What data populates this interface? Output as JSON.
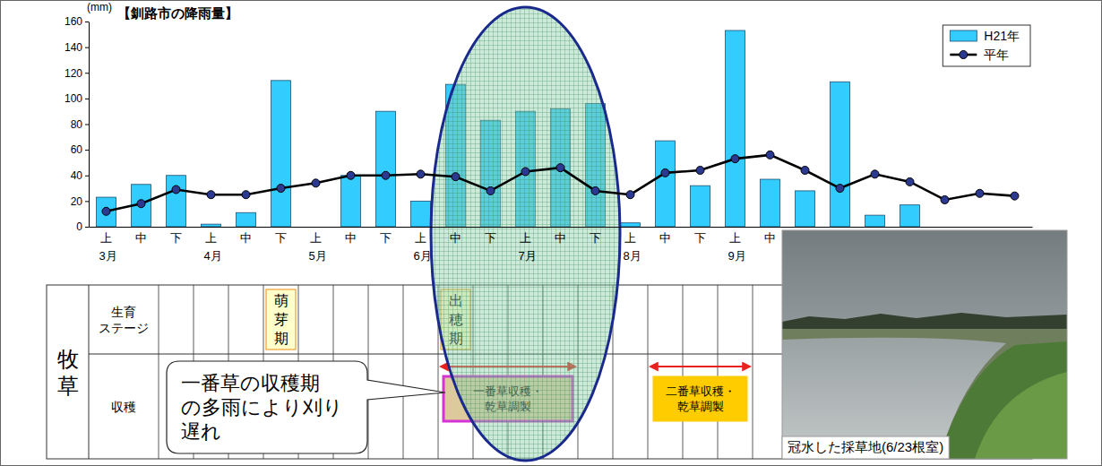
{
  "chart_data": {
    "type": "bar",
    "title": "【釧路市の降雨量】",
    "y_label": "(mm)",
    "categories": [
      "上",
      "中",
      "下",
      "上",
      "中",
      "下",
      "上",
      "中",
      "下",
      "上",
      "中",
      "下",
      "上",
      "中",
      "下",
      "上",
      "中",
      "下",
      "上",
      "中",
      null,
      null,
      null,
      null,
      null,
      null,
      null
    ],
    "month_labels": [
      "3月",
      null,
      null,
      "4月",
      null,
      null,
      "5月",
      null,
      null,
      "6月",
      null,
      null,
      "7月",
      null,
      null,
      "8月",
      null,
      null,
      "9月",
      null,
      null,
      null,
      null,
      null,
      null,
      null,
      null
    ],
    "series": [
      {
        "name": "H21年",
        "type": "bar",
        "color": "#33ccff",
        "values": [
          23,
          33,
          40,
          2,
          11,
          114,
          0,
          40,
          90,
          20,
          111,
          83,
          90,
          92,
          96,
          3,
          67,
          32,
          153,
          37,
          28,
          113,
          9,
          17,
          null,
          null,
          null
        ]
      },
      {
        "name": "平年",
        "type": "line",
        "color": "#000000",
        "marker": "circle",
        "values": [
          12,
          18,
          29,
          25,
          25,
          30,
          34,
          40,
          40,
          41,
          39,
          28,
          43,
          46,
          28,
          25,
          42,
          44,
          53,
          56,
          44,
          30,
          41,
          35,
          21,
          26,
          24
        ]
      }
    ],
    "ylim": [
      0,
      160
    ],
    "yticks": [
      0,
      20,
      40,
      60,
      80,
      100,
      120,
      140,
      160
    ],
    "grid": false,
    "legend": "top-right"
  },
  "schedule": {
    "group": "牧草",
    "row_labels": [
      "生育ステージ",
      "収穫"
    ],
    "stages": [
      {
        "text": "萌芽期",
        "column": 5
      },
      {
        "text": "出穂期",
        "column": 10
      }
    ],
    "harvest": [
      {
        "text": "一番草収穫・乾草調製",
        "first": 10,
        "last": 13
      },
      {
        "text": "二番草収穫・乾草調製",
        "first": 16,
        "last": 18
      }
    ]
  },
  "emphasis": {
    "first": 10,
    "last": 14
  },
  "callout": {
    "lines": [
      "一番草の収穫期",
      "の多雨により刈り",
      "遅れ"
    ]
  },
  "photo": {
    "caption": "冠水した採草地(6/23根室)"
  }
}
